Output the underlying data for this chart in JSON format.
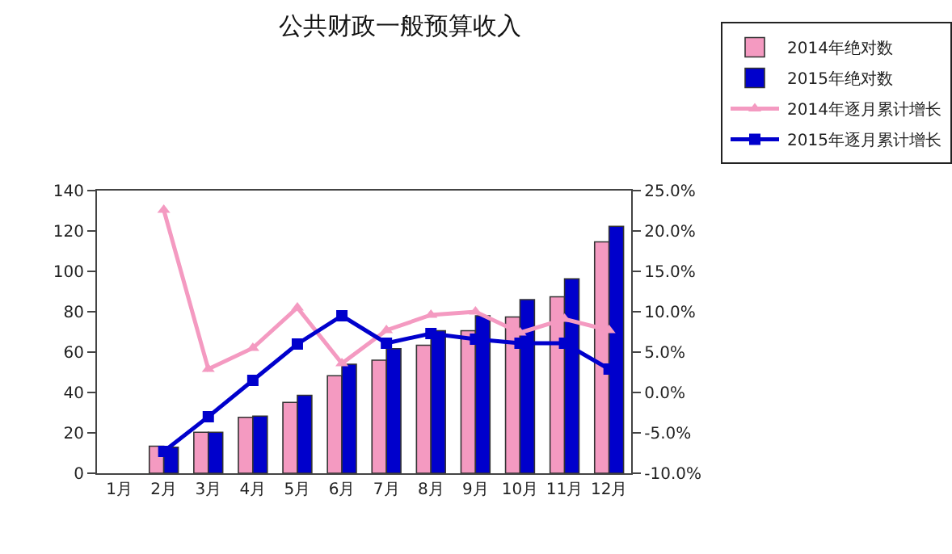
{
  "chart_data": {
    "type": "bar",
    "title": "公共财政一般预算收入",
    "categories": [
      "1月",
      "2月",
      "3月",
      "4月",
      "5月",
      "6月",
      "7月",
      "8月",
      "9月",
      "10月",
      "11月",
      "12月"
    ],
    "series": [
      {
        "name": "2014年绝对数",
        "color": "#f49ac1",
        "values": [
          null,
          13.4,
          20.3,
          27.7,
          35.1,
          48.3,
          56,
          63.4,
          70.6,
          77.4,
          87.4,
          114.6
        ]
      },
      {
        "name": "2015年绝对数",
        "color": "#0000cc",
        "values": [
          null,
          12.9,
          20.3,
          28.3,
          38.6,
          54,
          61.7,
          70.6,
          78,
          86,
          96.3,
          122.3
        ]
      },
      {
        "name": "2014年逐月累计增长",
        "type": "line",
        "axis": "y2",
        "marker": "triangle",
        "color": "#f49ac1",
        "values": [
          null,
          22.6,
          2.9,
          5.5,
          10.5,
          3.6,
          7.7,
          9.6,
          10.0,
          7.4,
          9.1,
          7.7
        ]
      },
      {
        "name": "2015年逐月累计增长",
        "type": "line",
        "axis": "y2",
        "marker": "square",
        "color": "#0000cc",
        "values": [
          null,
          -7.3,
          -3.0,
          1.5,
          6.0,
          9.5,
          6.1,
          7.3,
          6.6,
          6.1,
          6.1,
          2.9
        ]
      }
    ],
    "ylim": [
      0,
      140
    ],
    "yticks": [
      0,
      20,
      40,
      60,
      80,
      100,
      120,
      140
    ],
    "y2lim": [
      -10,
      25
    ],
    "y2ticks": [
      {
        "value": -10,
        "label": "-10.0%"
      },
      {
        "value": -5,
        "label": "-5.0%"
      },
      {
        "value": 0,
        "label": "0.0%"
      },
      {
        "value": 5,
        "label": "5.0%"
      },
      {
        "value": 10,
        "label": "10.0%"
      },
      {
        "value": 15,
        "label": "15.0%"
      },
      {
        "value": 20,
        "label": "20.0%"
      },
      {
        "value": 25,
        "label": "25.0%"
      }
    ],
    "legend": "top right",
    "grid": false
  }
}
